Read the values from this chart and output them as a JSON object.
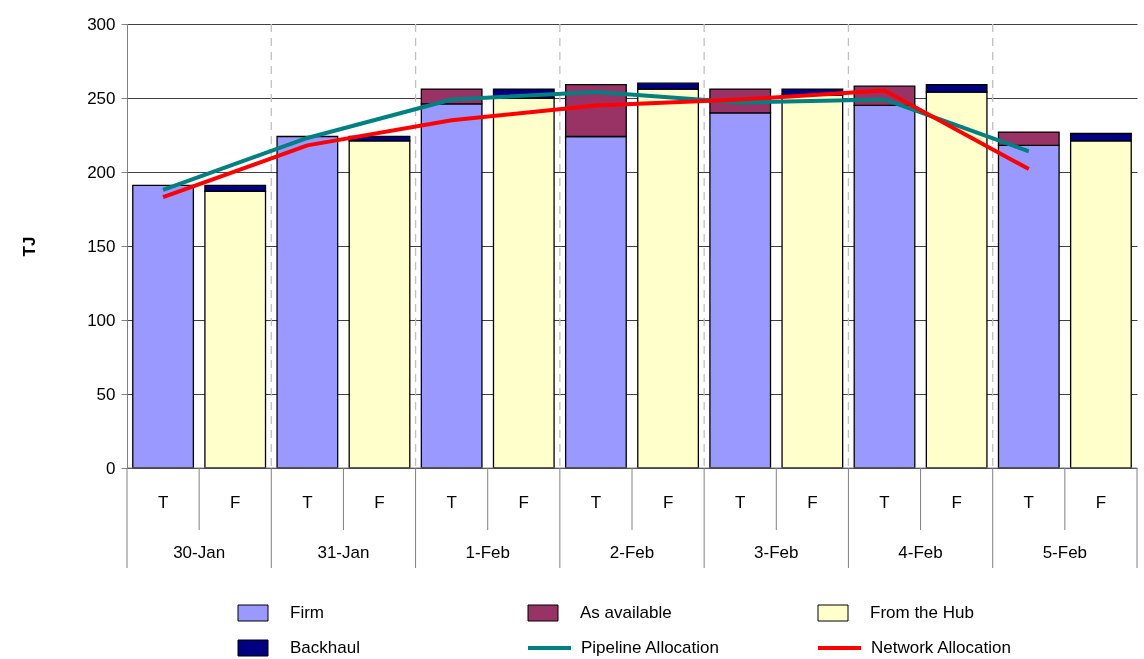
{
  "chart_data": {
    "type": "bar",
    "stacked": true,
    "ylabel": "TJ",
    "categories": [
      "T",
      "F",
      "T",
      "F",
      "T",
      "F",
      "T",
      "F",
      "T",
      "F",
      "T",
      "F",
      "T",
      "F"
    ],
    "annotations": [
      "30-Jan",
      "31-Jan",
      "1-Feb",
      "2-Feb",
      "3-Feb",
      "4-Feb",
      "5-Feb"
    ],
    "series": [
      {
        "name": "Firm",
        "color": "#9999ff",
        "values": [
          191,
          null,
          224,
          null,
          246,
          null,
          224,
          null,
          240,
          null,
          245,
          null,
          218,
          null
        ]
      },
      {
        "name": "As available",
        "color": "#993366",
        "values": [
          null,
          null,
          null,
          null,
          10,
          null,
          35,
          null,
          16,
          null,
          13,
          null,
          9,
          null
        ]
      },
      {
        "name": "From the Hub",
        "color": "#ffffcc",
        "values": [
          null,
          187,
          null,
          221,
          null,
          250,
          null,
          256,
          null,
          252,
          null,
          254,
          null,
          221
        ]
      },
      {
        "name": "Backhaul",
        "color": "#000080",
        "values": [
          null,
          4,
          null,
          3,
          null,
          6,
          null,
          4,
          null,
          4,
          null,
          5,
          null,
          5
        ]
      },
      {
        "name": "Pipeline Allocation",
        "color": "#008080",
        "type": "line",
        "values": [
          188,
          null,
          223,
          null,
          249,
          null,
          254,
          null,
          247,
          null,
          249,
          null,
          214,
          null
        ]
      },
      {
        "name": "Network Allocation",
        "color": "#ff0000",
        "type": "line",
        "values": [
          183,
          null,
          218,
          null,
          235,
          null,
          245,
          null,
          249,
          null,
          255,
          null,
          202,
          null
        ]
      }
    ],
    "ylim": [
      0,
      300
    ],
    "yticks": [
      0,
      50,
      100,
      150,
      200,
      250,
      300
    ],
    "grid": "y",
    "legend": "bottom"
  }
}
